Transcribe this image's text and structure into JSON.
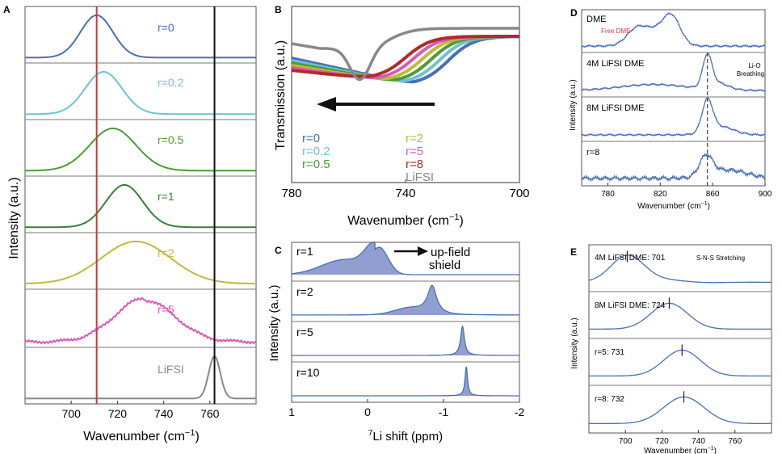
{
  "colors": {
    "blue": "#4a6fb5",
    "lightblue": "#6cc3d4",
    "green": "#4f9a36",
    "darkgreen": "#3a7f3a",
    "olive": "#bdbc36",
    "magenta": "#d85ab8",
    "gray": "#888888",
    "red": "#c43c3c",
    "black": "#111111",
    "darkred": "#b22a2a"
  },
  "chart_data": [
    {
      "panel": "A",
      "type": "line",
      "xlabel": "Wavenumber (cm⁻¹)",
      "ylabel": "Intensity (a.u.)",
      "xlim": [
        680,
        780
      ],
      "xticks": [
        700,
        720,
        740,
        760
      ],
      "reference_lines": [
        711,
        762
      ],
      "series": [
        {
          "name": "r=0",
          "center": 711,
          "width": 7,
          "baseline": 0.05
        },
        {
          "name": "r=0.2",
          "center": 714,
          "width": 8,
          "baseline": 0.05
        },
        {
          "name": "r=0.5",
          "center": 718,
          "width": 10,
          "baseline": 0.05
        },
        {
          "name": "r=1",
          "center": 723,
          "width": 8,
          "baseline": 0.05
        },
        {
          "name": "r=2",
          "center": 728,
          "width": 15,
          "baseline": 0.05
        },
        {
          "name": "r=5",
          "center": 732,
          "width": 13,
          "baseline": 0.05
        },
        {
          "name": "LiFSI",
          "center": 762,
          "width": 2.5,
          "baseline": 0.05
        }
      ]
    },
    {
      "panel": "B",
      "type": "line",
      "xlabel": "Wavenumber (cm⁻¹)",
      "ylabel": "Transmission (a.u.)",
      "xlim": [
        780,
        700
      ],
      "xticks": [
        780,
        740,
        700
      ],
      "series": [
        {
          "name": "r=0",
          "min_x": 737
        },
        {
          "name": "r=0.2",
          "min_x": 740
        },
        {
          "name": "r=0.5",
          "min_x": 743
        },
        {
          "name": "r=2",
          "min_x": 746
        },
        {
          "name": "r=5",
          "min_x": 749
        },
        {
          "name": "r=8",
          "min_x": 752
        },
        {
          "name": "LiFSI",
          "min_x": 755
        }
      ],
      "annotation": "arrow toward higher wavenumber"
    },
    {
      "panel": "C",
      "type": "line",
      "xlabel": "7Li shift (ppm)",
      "ylabel": "Intensity (a.u.)",
      "xlim": [
        1,
        -2
      ],
      "xticks": [
        1,
        0,
        -1,
        -2
      ],
      "xtick_labels": [
        "1",
        "0",
        "-1",
        "-2"
      ],
      "series": [
        {
          "name": "r=1",
          "peak": -0.1,
          "width": 0.25
        },
        {
          "name": "r=2",
          "peak": -0.85,
          "width": 0.09
        },
        {
          "name": "r=5",
          "peak": -1.25,
          "width": 0.03
        },
        {
          "name": "r=10",
          "peak": -1.3,
          "width": 0.02
        }
      ],
      "annotation": "up-field shield"
    },
    {
      "panel": "D",
      "type": "line",
      "xlabel": "Wavenumber (cm⁻¹)",
      "ylabel": "Intensity (a.u.)",
      "xlim": [
        760,
        900
      ],
      "xticks": [
        780,
        820,
        860,
        900
      ],
      "reference_line": 856,
      "series": [
        {
          "name": "DME",
          "peaks": [
            803,
            828
          ]
        },
        {
          "name": "4M LiFSI DME",
          "peaks": [
            856
          ]
        },
        {
          "name": "8M LiFSI DME",
          "peaks": [
            856
          ]
        },
        {
          "name": "r=8",
          "peaks": [
            855
          ]
        }
      ]
    },
    {
      "panel": "E",
      "type": "line",
      "xlabel": "Wavenumber (cm⁻¹)",
      "ylabel": "Intensity (a.u.)",
      "xlim": [
        680,
        780
      ],
      "xticks": [
        700,
        720,
        740,
        760
      ],
      "series": [
        {
          "name": "4M LiFSI DME",
          "peak": 701
        },
        {
          "name": "8M LiFSI DME",
          "peak": 724
        },
        {
          "name": "r=5",
          "peak": 731
        },
        {
          "name": "r=8",
          "peak": 732
        }
      ]
    }
  ],
  "panelA": {
    "letter": "A",
    "ylabel": "Intensity (a.u.)",
    "xlabel": "Wavenumber (cm",
    "xlabel_sup": "−1",
    "xlabel_end": ")",
    "ticks": [
      "700",
      "720",
      "740",
      "760"
    ],
    "labels": [
      "r=0",
      "r=0.2",
      "r=0.5",
      "r=1",
      "r=2",
      "r=5",
      "LiFSI"
    ]
  },
  "panelB": {
    "letter": "B",
    "ylabel": "Transmission (a.u.)",
    "xlabel": "Wavenumber (cm",
    "xlabel_sup": "−1",
    "xlabel_end": ")",
    "ticks": [
      "780",
      "740",
      "700"
    ],
    "legend_left": [
      "r=0",
      "r=0.2",
      "r=0.5"
    ],
    "legend_right": [
      "r=2",
      "r=5",
      "r=8",
      "LiFSI"
    ]
  },
  "panelC": {
    "letter": "C",
    "ylabel": "Intensity (a.u.)",
    "xlabel_pre": "7",
    "xlabel": "Li shift (ppm)",
    "ticks": [
      "1",
      "0",
      "-1",
      "-2"
    ],
    "labels": [
      "r=1",
      "r=2",
      "r=5",
      "r=10"
    ],
    "arrow_label_1": "up-field",
    "arrow_label_2": "shield"
  },
  "panelD": {
    "letter": "D",
    "ylabel": "Intensity (a.u.)",
    "xlabel": "Wavenumber (cm",
    "xlabel_sup": "−1",
    "xlabel_end": ")",
    "ticks": [
      "780",
      "820",
      "860",
      "900"
    ],
    "labels": [
      "DME",
      "4M LiFSI DME",
      "8M LiFSI DME",
      "r=8"
    ],
    "free_dme": "Free DME",
    "lio_1": "Li-O",
    "lio_2": "Breathing"
  },
  "panelE": {
    "letter": "E",
    "ylabel": "Intensity (a.u.)",
    "xlabel": "Wavenumber (cm",
    "xlabel_sup": "−1",
    "xlabel_end": ")",
    "ticks": [
      "700",
      "720",
      "740",
      "760"
    ],
    "labels": [
      "4M LiFSI DME: 701",
      "8M LiFSI DME: 724",
      "r=5: 731",
      "r=8: 732"
    ],
    "sns": "S-N-S Stretching"
  }
}
